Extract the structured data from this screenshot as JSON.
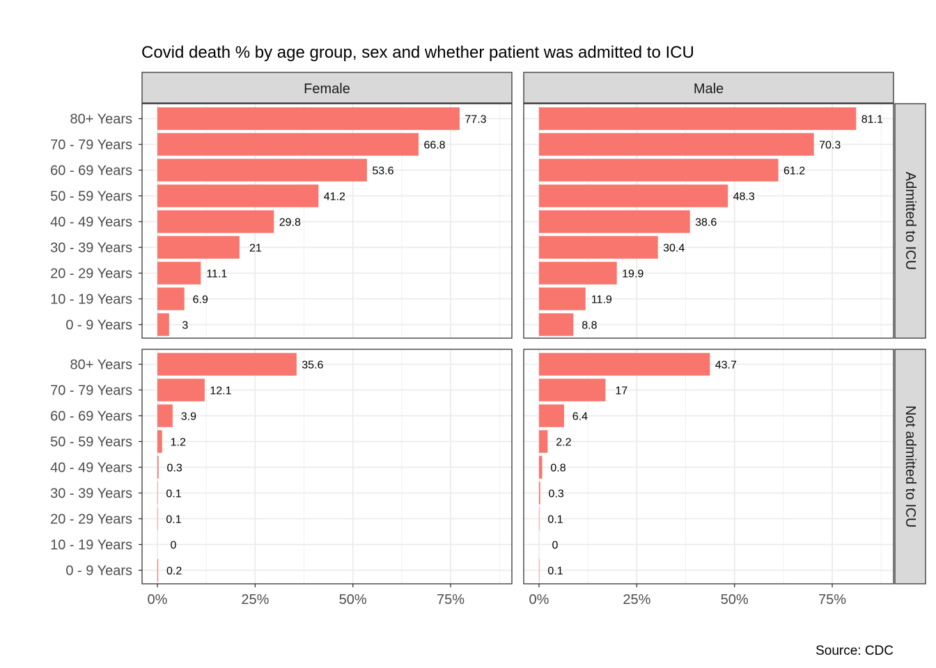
{
  "chart_data": {
    "type": "bar",
    "orientation": "horizontal",
    "title": "Covid death % by age group, sex and whether patient was admitted to ICU",
    "caption": "Source: CDC",
    "xlim": [
      0,
      90
    ],
    "x_ticks": [
      0,
      25,
      50,
      75
    ],
    "x_tick_labels": [
      "0%",
      "25%",
      "50%",
      "75%"
    ],
    "grid": true,
    "bar_color": "#f8766d",
    "strip_color": "#d9d9d9",
    "categories": [
      "80+ Years",
      "70 - 79 Years",
      "60 - 69 Years",
      "50 - 59 Years",
      "40 - 49 Years",
      "30 - 39 Years",
      "20 - 29 Years",
      "10 - 19 Years",
      "0 - 9 Years"
    ],
    "facet_columns": [
      "Female",
      "Male"
    ],
    "facet_rows": [
      "Admitted to ICU",
      "Not admitted to ICU"
    ],
    "panels": [
      {
        "column": "Female",
        "row": "Admitted to ICU",
        "values": [
          77.3,
          66.8,
          53.6,
          41.2,
          29.8,
          21,
          11.1,
          6.9,
          3
        ],
        "labels": [
          "77.3",
          "66.8",
          "53.6",
          "41.2",
          "29.8",
          "21",
          "11.1",
          "6.9",
          "3"
        ]
      },
      {
        "column": "Male",
        "row": "Admitted to ICU",
        "values": [
          81.1,
          70.3,
          61.2,
          48.3,
          38.6,
          30.4,
          19.9,
          11.9,
          8.8
        ],
        "labels": [
          "81.1",
          "70.3",
          "61.2",
          "48.3",
          "38.6",
          "30.4",
          "19.9",
          "11.9",
          "8.8"
        ]
      },
      {
        "column": "Female",
        "row": "Not admitted to ICU",
        "values": [
          35.6,
          12.1,
          3.9,
          1.2,
          0.3,
          0.1,
          0.1,
          0,
          0.2
        ],
        "labels": [
          "35.6",
          "12.1",
          "3.9",
          "1.2",
          "0.3",
          "0.1",
          "0.1",
          "0",
          "0.2"
        ]
      },
      {
        "column": "Male",
        "row": "Not admitted to ICU",
        "values": [
          43.7,
          17,
          6.4,
          2.2,
          0.8,
          0.3,
          0.1,
          0,
          0.1
        ],
        "labels": [
          "43.7",
          "17",
          "6.4",
          "2.2",
          "0.8",
          "0.3",
          "0.1",
          "0",
          "0.1"
        ]
      }
    ]
  }
}
